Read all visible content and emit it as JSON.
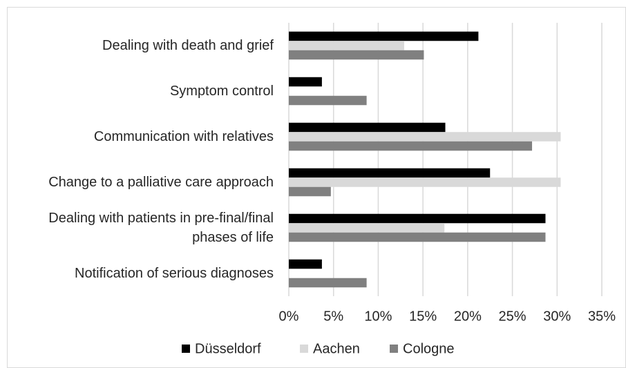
{
  "chart_data": {
    "type": "hbar",
    "categories": [
      "Dealing with death and grief",
      "Symptom control",
      "Communication with relatives",
      "Change to a palliative care approach",
      "Dealing with patients in pre-final/final phases of life",
      "Notification of serious diagnoses"
    ],
    "series": [
      {
        "name": "Düsseldorf",
        "color": "#000000",
        "values": [
          21.2,
          3.7,
          17.5,
          22.5,
          28.7,
          3.7
        ]
      },
      {
        "name": "Aachen",
        "color": "#d9d9d9",
        "values": [
          12.9,
          0,
          30.4,
          30.4,
          17.4,
          0
        ]
      },
      {
        "name": "Cologne",
        "color": "#808080",
        "values": [
          15.1,
          8.7,
          27.2,
          4.7,
          28.7,
          8.7
        ]
      }
    ],
    "xlim": [
      0,
      35
    ],
    "xticks": [
      {
        "value": 0,
        "label": "0%"
      },
      {
        "value": 5,
        "label": "5%"
      },
      {
        "value": 10,
        "label": "10%"
      },
      {
        "value": 15,
        "label": "15%"
      },
      {
        "value": 20,
        "label": "20%"
      },
      {
        "value": 25,
        "label": "25%"
      },
      {
        "value": 30,
        "label": "30%"
      },
      {
        "value": 35,
        "label": "35%"
      }
    ],
    "grid": true,
    "legend": "bottom"
  }
}
